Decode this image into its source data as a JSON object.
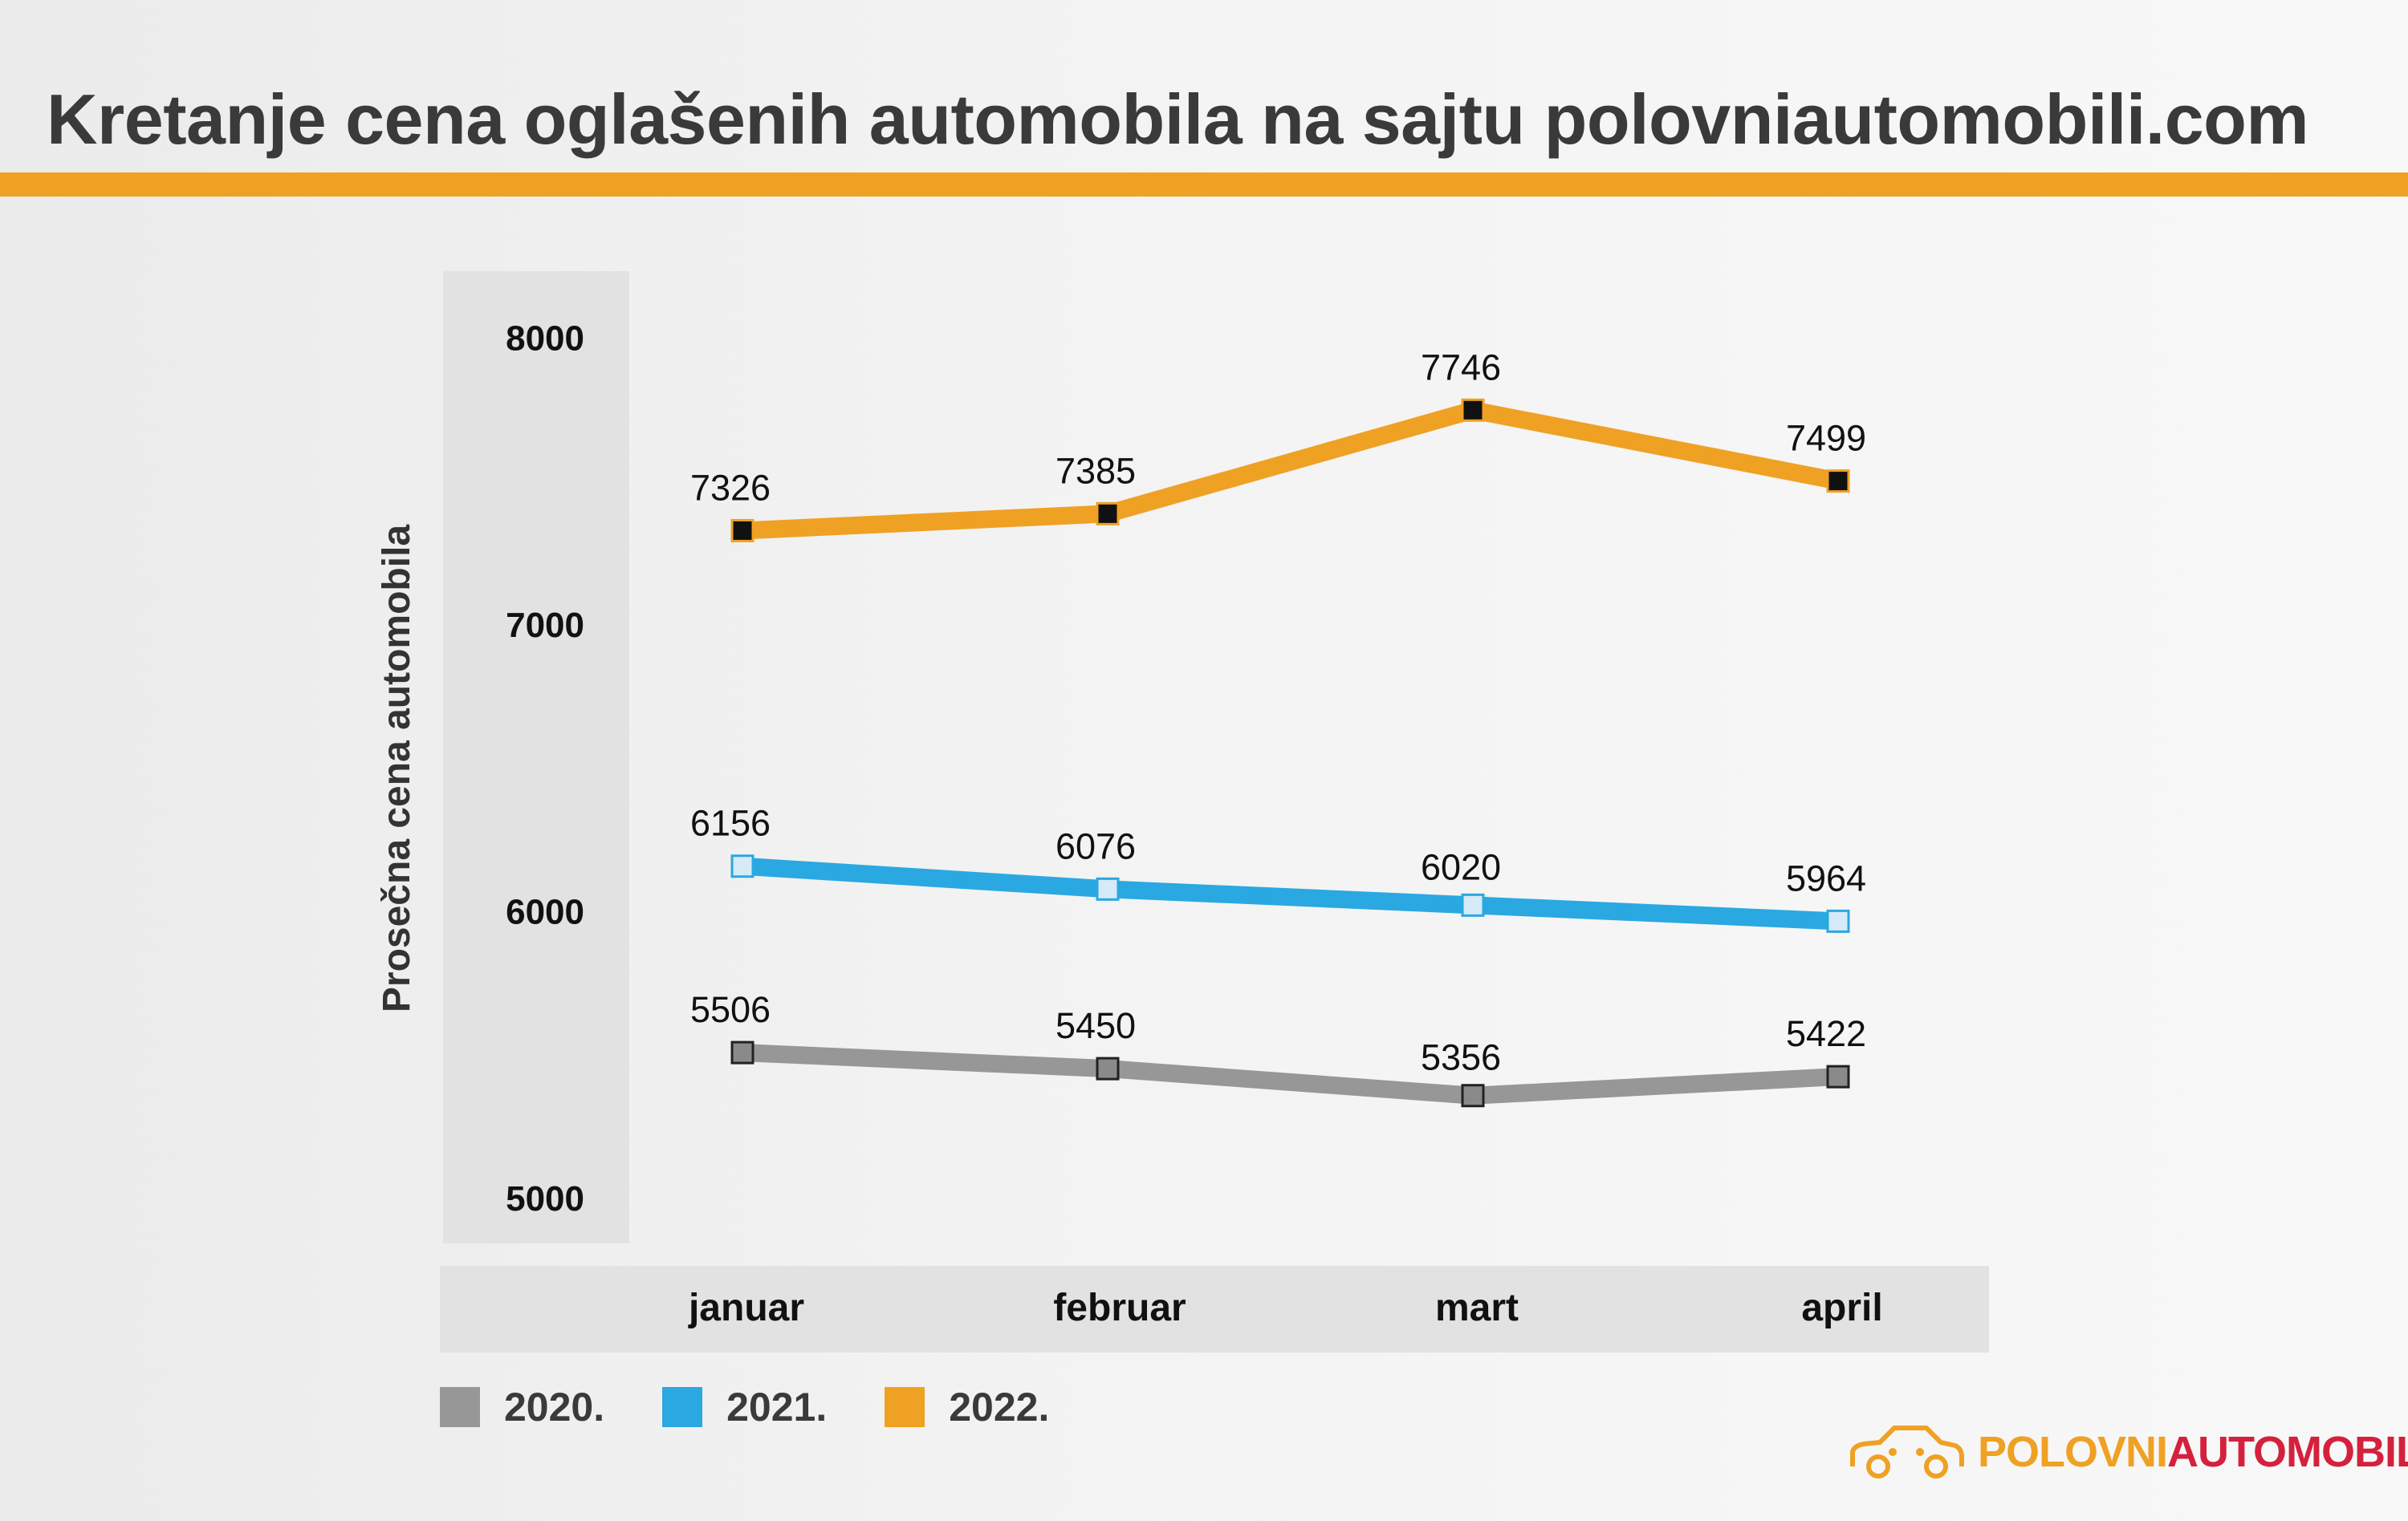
{
  "title": "Kretanje cena oglašenih automobila na sajtu polovniautomobili.com",
  "colors": {
    "accent": "#efa124",
    "s2020": "#979797",
    "s2021": "#2aa8e1",
    "s2022": "#efa124",
    "brand_red": "#d4213d"
  },
  "chart_data": {
    "type": "line",
    "title": "Kretanje cena oglašenih automobila na sajtu polovniautomobili.com",
    "xlabel": "",
    "ylabel": "Prosečna cena automobila",
    "categories": [
      "januar",
      "februar",
      "mart",
      "april"
    ],
    "yticks": [
      5000,
      6000,
      7000,
      8000
    ],
    "ytick_labels": [
      "5000",
      "6000",
      "7000",
      "8000"
    ],
    "ylim": [
      5000,
      8000
    ],
    "legend_position": "bottom-left",
    "series": [
      {
        "name": "2020.",
        "color": "#979797",
        "marker": "square-gray",
        "values": [
          5506,
          5450,
          5356,
          5422
        ],
        "labels": [
          "5506",
          "5450",
          "5356",
          "5422"
        ]
      },
      {
        "name": "2021.",
        "color": "#2aa8e1",
        "marker": "square-light",
        "values": [
          6156,
          6076,
          6020,
          5964
        ],
        "labels": [
          "6156",
          "6076",
          "6020",
          "5964"
        ]
      },
      {
        "name": "2022.",
        "color": "#efa124",
        "marker": "square-black",
        "values": [
          7326,
          7385,
          7746,
          7499
        ],
        "labels": [
          "7326",
          "7385",
          "7746",
          "7499"
        ]
      }
    ]
  },
  "logo": {
    "part1": "POLOVNI",
    "part2": "AUTOMOBILI",
    "icon": "car-outline-icon"
  }
}
